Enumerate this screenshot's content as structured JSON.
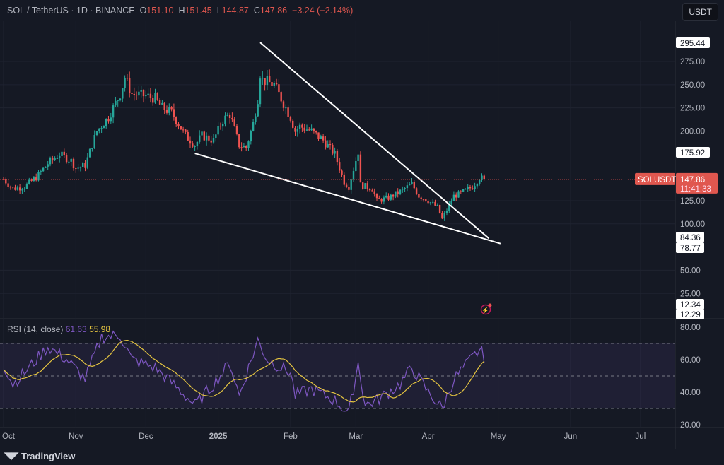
{
  "header": {
    "symbol": "SOL / TetherUS · 1D · BINANCE",
    "o_label": "O",
    "o": "151.10",
    "h_label": "H",
    "h": "151.45",
    "l_label": "L",
    "l": "144.87",
    "c_label": "C",
    "c": "147.86",
    "change": "−3.24 (−2.14%)"
  },
  "currency": "USDT",
  "footer": {
    "brand": "TradingView"
  },
  "colors": {
    "up": "#26a69a",
    "down": "#ef5350",
    "rsi": "#7e57c2",
    "rsi_ma": "#e4c441",
    "bg": "#151924",
    "trendline": "#ffffff"
  },
  "chart_data": [
    {
      "type": "candlestick",
      "title": "SOL / TetherUS",
      "ylim": [
        0,
        300
      ],
      "yticks": [
        "275.00",
        "250.00",
        "225.00",
        "200.00",
        "125.00",
        "100.00",
        "50.00",
        "25.00"
      ],
      "ytick_values": [
        275,
        250,
        225,
        200,
        125,
        100,
        50,
        25
      ],
      "xticks": [
        "Oct",
        "Nov",
        "Dec",
        "2025",
        "Feb",
        "Mar",
        "Apr",
        "May",
        "Jun",
        "Jul"
      ],
      "xtick_days": [
        0,
        31,
        61,
        92,
        123,
        151,
        182,
        212,
        243,
        273
      ],
      "start_date": "2024-10-01",
      "key_closes": [
        [
          0,
          148
        ],
        [
          4,
          138
        ],
        [
          9,
          140
        ],
        [
          14,
          150
        ],
        [
          19,
          165
        ],
        [
          24,
          175
        ],
        [
          29,
          168
        ],
        [
          31,
          160
        ],
        [
          35,
          163
        ],
        [
          40,
          200
        ],
        [
          45,
          215
        ],
        [
          50,
          240
        ],
        [
          52,
          258
        ],
        [
          55,
          240
        ],
        [
          61,
          238
        ],
        [
          65,
          235
        ],
        [
          68,
          225
        ],
        [
          72,
          220
        ],
        [
          78,
          195
        ],
        [
          82,
          185
        ],
        [
          85,
          195
        ],
        [
          90,
          190
        ],
        [
          94,
          212
        ],
        [
          97,
          218
        ],
        [
          101,
          185
        ],
        [
          104,
          182
        ],
        [
          107,
          208
        ],
        [
          109,
          235
        ],
        [
          110,
          262
        ],
        [
          111,
          255
        ],
        [
          116,
          250
        ],
        [
          119,
          235
        ],
        [
          123,
          215
        ],
        [
          125,
          200
        ],
        [
          127,
          205
        ],
        [
          132,
          200
        ],
        [
          137,
          190
        ],
        [
          142,
          175
        ],
        [
          146,
          145
        ],
        [
          148,
          140
        ],
        [
          152,
          178
        ],
        [
          153,
          142
        ],
        [
          158,
          138
        ],
        [
          160,
          125
        ],
        [
          165,
          128
        ],
        [
          170,
          135
        ],
        [
          175,
          143
        ],
        [
          178,
          130
        ],
        [
          182,
          125
        ],
        [
          186,
          118
        ],
        [
          188,
          105
        ],
        [
          190,
          115
        ],
        [
          193,
          130
        ],
        [
          196,
          133
        ],
        [
          201,
          140
        ],
        [
          204,
          150
        ],
        [
          206,
          148
        ]
      ],
      "price_labels": [
        {
          "value": "295.44",
          "v": 295.44
        },
        {
          "value": "175.92",
          "v": 175.92
        },
        {
          "value": "84.36",
          "v": 84.36
        },
        {
          "value": "78.77",
          "v": 78.77
        },
        {
          "value": "12.34",
          "v": 12.34
        },
        {
          "value": "12.29",
          "v": 12.29
        }
      ],
      "last_price": {
        "symbol": "SOLUSDT",
        "price": "147.86",
        "v": 147.86,
        "countdown": "11:41:33"
      },
      "trendlines": [
        {
          "name": "upper",
          "from": [
            110,
            295.44
          ],
          "to": [
            208,
            84.36
          ]
        },
        {
          "name": "lower",
          "from": [
            82,
            175.92
          ],
          "to": [
            213,
            78.77
          ]
        }
      ]
    },
    {
      "type": "line",
      "title": "RSI (14, close)",
      "rsi_value": "61.63",
      "ma_value": "55.98",
      "ylim": [
        20,
        80
      ],
      "yticks": [
        "80.00",
        "60.00",
        "40.00",
        "20.00"
      ],
      "ytick_values": [
        80,
        60,
        40,
        20
      ],
      "bands": [
        30,
        50,
        70
      ],
      "key_rsi": [
        [
          0,
          57
        ],
        [
          4,
          45
        ],
        [
          9,
          52
        ],
        [
          14,
          60
        ],
        [
          19,
          68
        ],
        [
          27,
          60
        ],
        [
          35,
          48
        ],
        [
          42,
          74
        ],
        [
          50,
          75
        ],
        [
          55,
          60
        ],
        [
          65,
          55
        ],
        [
          75,
          42
        ],
        [
          82,
          32
        ],
        [
          90,
          45
        ],
        [
          97,
          58
        ],
        [
          101,
          38
        ],
        [
          109,
          72
        ],
        [
          113,
          60
        ],
        [
          123,
          52
        ],
        [
          125,
          38
        ],
        [
          132,
          42
        ],
        [
          142,
          35
        ],
        [
          148,
          27
        ],
        [
          152,
          58
        ],
        [
          155,
          32
        ],
        [
          160,
          35
        ],
        [
          170,
          45
        ],
        [
          175,
          55
        ],
        [
          182,
          40
        ],
        [
          188,
          30
        ],
        [
          193,
          48
        ],
        [
          199,
          58
        ],
        [
          204,
          66
        ],
        [
          206,
          62
        ]
      ]
    }
  ]
}
